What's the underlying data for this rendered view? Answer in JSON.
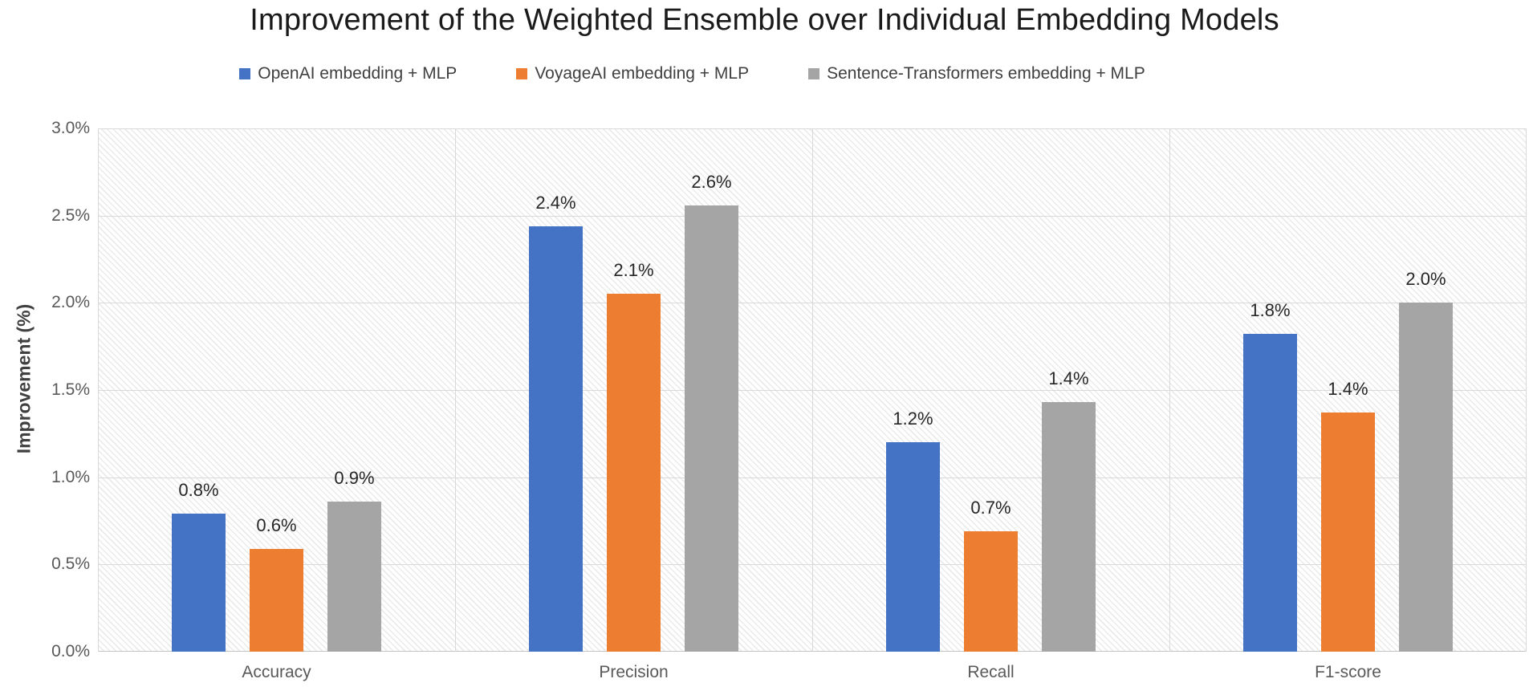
{
  "chart_data": {
    "type": "bar",
    "title": "Improvement of the Weighted Ensemble over Individual Embedding Models",
    "ylabel": "Improvement (%)",
    "xlabel": "",
    "categories": [
      "Accuracy",
      "Precision",
      "Recall",
      "F1-score"
    ],
    "series": [
      {
        "name": "OpenAI embedding + MLP",
        "color": "#4472C4",
        "values": [
          0.79,
          2.44,
          1.2,
          1.82
        ],
        "labels": [
          "0.8%",
          "2.4%",
          "1.2%",
          "1.8%"
        ]
      },
      {
        "name": "VoyageAI embedding + MLP",
        "color": "#ED7D31",
        "values": [
          0.59,
          2.05,
          0.69,
          1.37
        ],
        "labels": [
          "0.6%",
          "2.1%",
          "0.7%",
          "1.4%"
        ]
      },
      {
        "name": "Sentence-Transformers embedding + MLP",
        "color": "#A5A5A5",
        "values": [
          0.86,
          2.56,
          1.43,
          2.0
        ],
        "labels": [
          "0.9%",
          "2.6%",
          "1.4%",
          "2.0%"
        ]
      }
    ],
    "y_axis": {
      "min": 0,
      "max": 3,
      "step": 0.5,
      "tick_labels": [
        "0.0%",
        "0.5%",
        "1.0%",
        "1.5%",
        "2.0%",
        "2.5%",
        "3.0%"
      ]
    },
    "legend_position": "top",
    "grid": true,
    "plot_background": "diagonal-hatch"
  },
  "colors": {
    "gridline": "#D9D9D9",
    "axis_line": "#C3C3C3",
    "tick_text": "#595959",
    "category_text": "#595959",
    "title_text": "#1A1A1A",
    "data_label_text": "#262626",
    "legend_text": "#404040"
  }
}
